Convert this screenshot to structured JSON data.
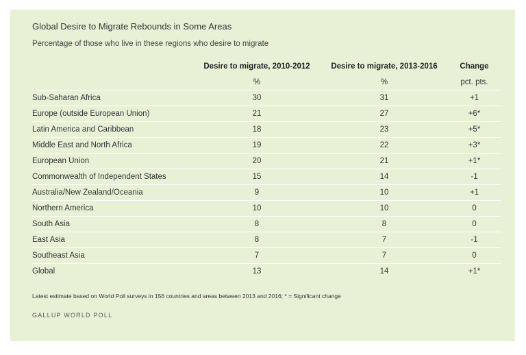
{
  "chart_data": {
    "type": "table",
    "title": "Global Desire to Migrate Rebounds in Some Areas",
    "subtitle": "Percentage of those who live in these regions who desire to migrate",
    "columns": [
      "Desire to migrate, 2010-2012",
      "Desire to migrate, 2013-2016",
      "Change"
    ],
    "units": [
      "%",
      "%",
      "pct. pts."
    ],
    "rows": [
      {
        "region": "Sub-Saharan Africa",
        "v2010_2012": 30,
        "v2013_2016": 31,
        "change": "+1"
      },
      {
        "region": "Europe (outside European Union)",
        "v2010_2012": 21,
        "v2013_2016": 27,
        "change": "+6*"
      },
      {
        "region": "Latin America and Caribbean",
        "v2010_2012": 18,
        "v2013_2016": 23,
        "change": "+5*"
      },
      {
        "region": "Middle East and North Africa",
        "v2010_2012": 19,
        "v2013_2016": 22,
        "change": "+3*"
      },
      {
        "region": "European Union",
        "v2010_2012": 20,
        "v2013_2016": 21,
        "change": "+1*"
      },
      {
        "region": "Commonwealth of Independent States",
        "v2010_2012": 15,
        "v2013_2016": 14,
        "change": "-1"
      },
      {
        "region": "Australia/New Zealand/Oceania",
        "v2010_2012": 9,
        "v2013_2016": 10,
        "change": "+1"
      },
      {
        "region": "Northern America",
        "v2010_2012": 10,
        "v2013_2016": 10,
        "change": "0"
      },
      {
        "region": "South Asia",
        "v2010_2012": 8,
        "v2013_2016": 8,
        "change": "0"
      },
      {
        "region": "East Asia",
        "v2010_2012": 8,
        "v2013_2016": 7,
        "change": "-1"
      },
      {
        "region": "Southeast Asia",
        "v2010_2012": 7,
        "v2013_2016": 7,
        "change": "0"
      },
      {
        "region": "Global",
        "v2010_2012": 13,
        "v2013_2016": 14,
        "change": "+1*"
      }
    ],
    "footnote": "Latest estimate based on World Poll surveys in 156 countries and areas between 2013 and 2016; * = Significant change",
    "source": "GALLUP WORLD POLL"
  },
  "colors": {
    "panel_background": "#e8f1d6",
    "row_divider": "#ffffff",
    "text": "#333333"
  }
}
